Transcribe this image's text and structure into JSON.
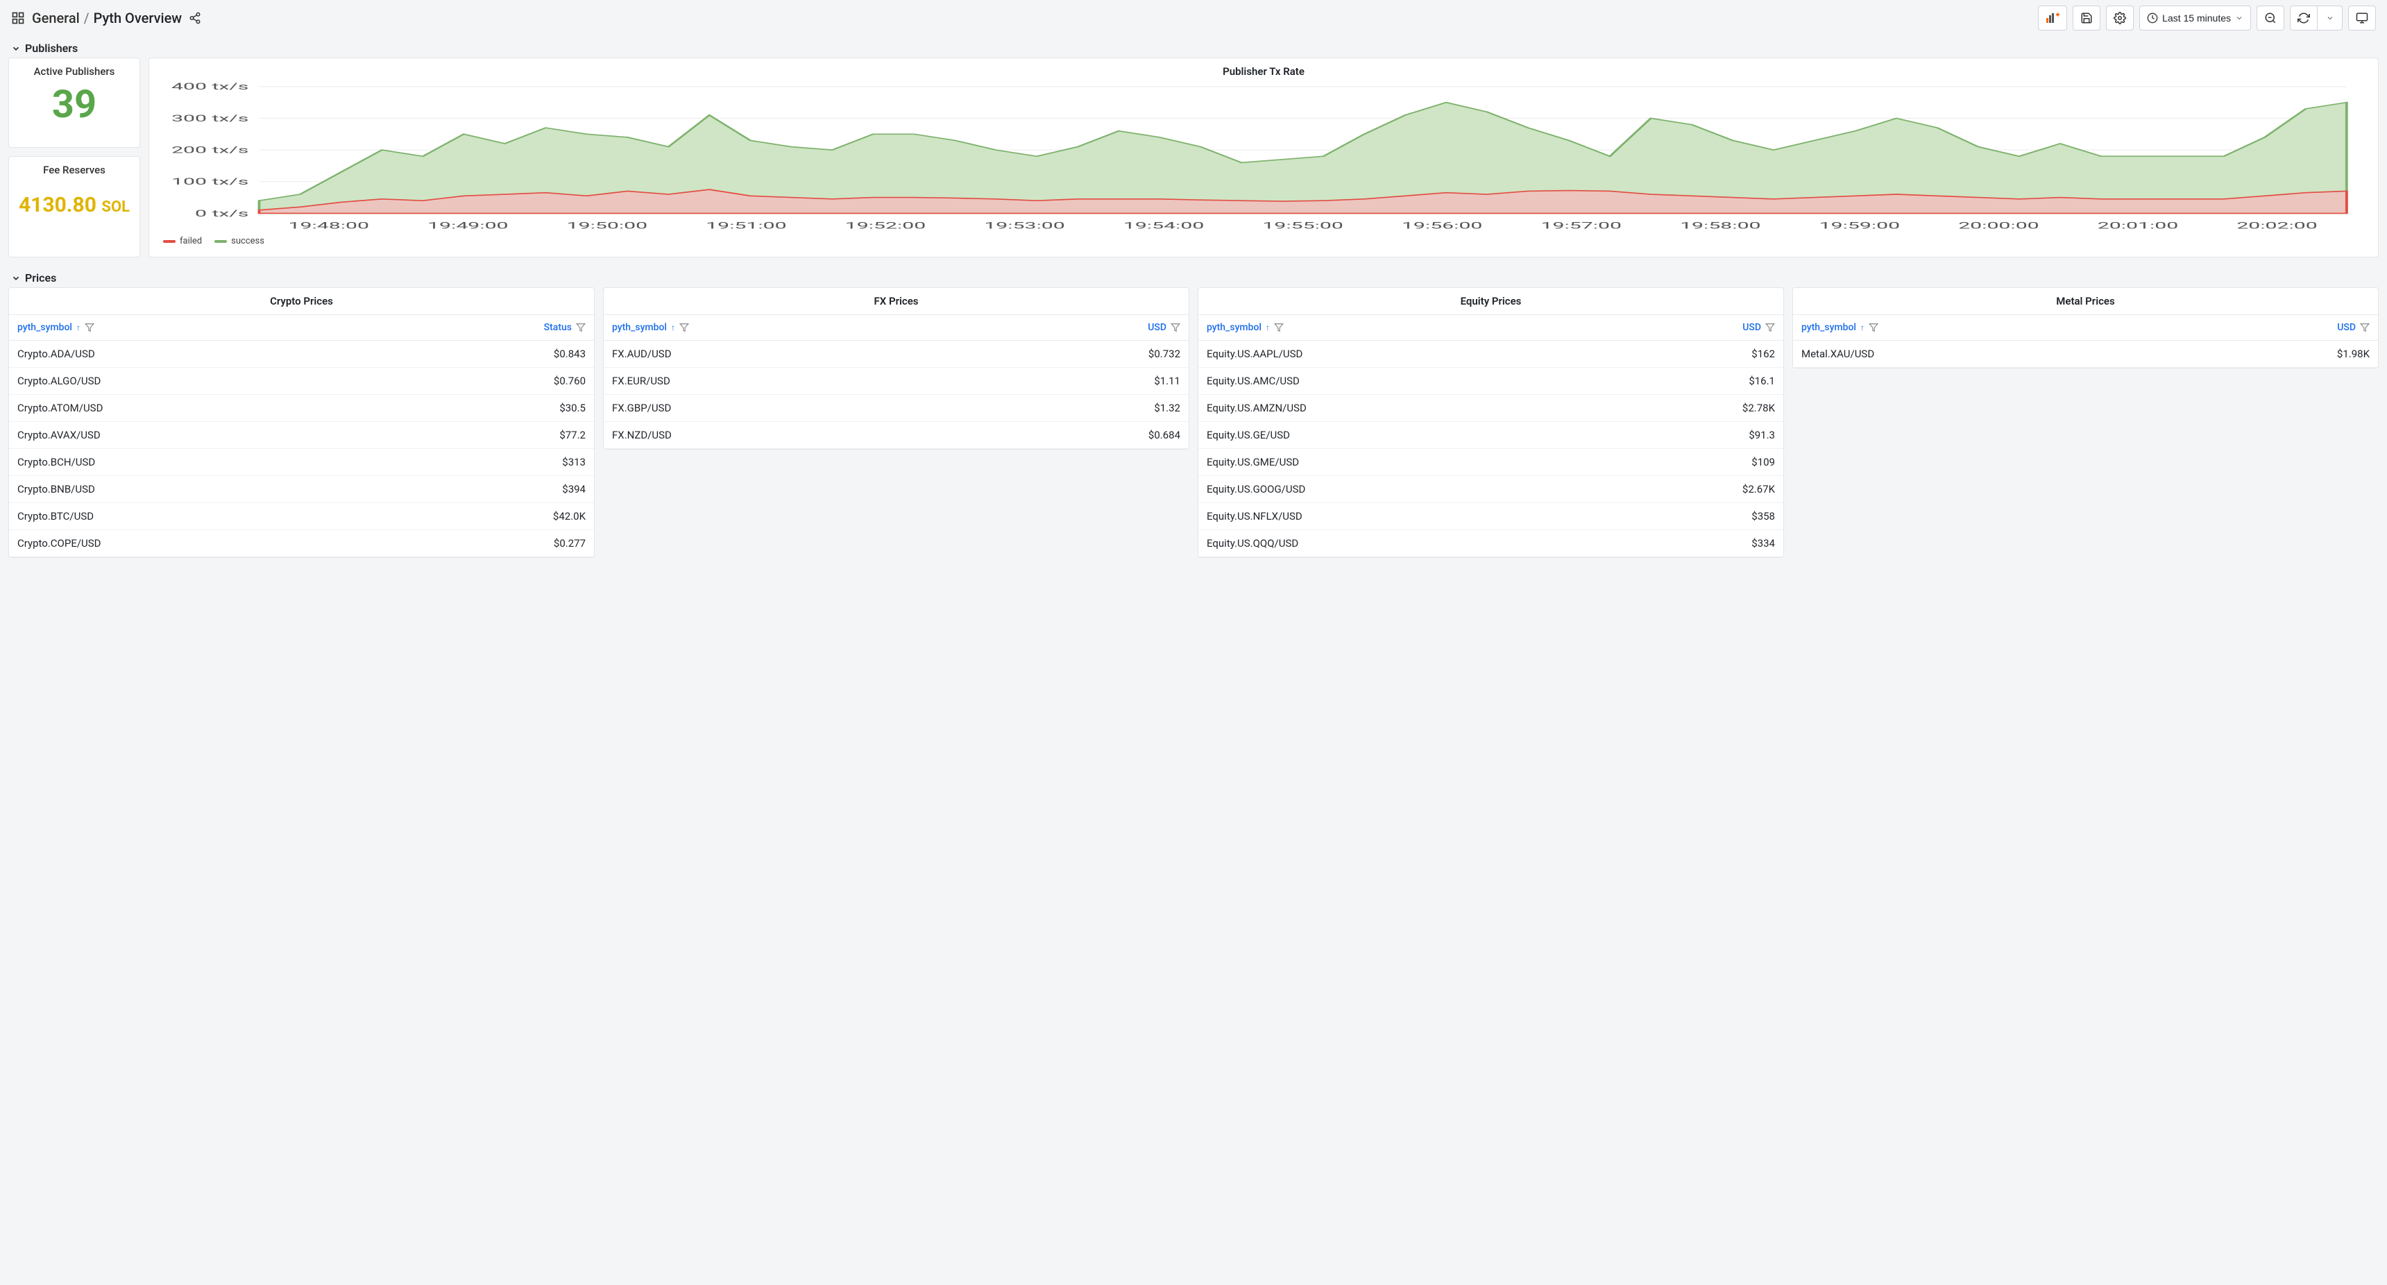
{
  "header": {
    "folder": "General",
    "title": "Pyth Overview",
    "time_range": "Last 15 minutes"
  },
  "sections": {
    "publishers": "Publishers",
    "prices": "Prices"
  },
  "stats": {
    "active_publishers": {
      "title": "Active Publishers",
      "value": "39",
      "color": "#5aa64a"
    },
    "fee_reserves": {
      "title": "Fee Reserves",
      "value": "4130.80",
      "unit": "SOL",
      "color": "#e0b400"
    }
  },
  "chart": {
    "title": "Publisher Tx Rate",
    "type": "area",
    "x_ticks": [
      "19:48:00",
      "19:49:00",
      "19:50:00",
      "19:51:00",
      "19:52:00",
      "19:53:00",
      "19:54:00",
      "19:55:00",
      "19:56:00",
      "19:57:00",
      "19:58:00",
      "19:59:00",
      "20:00:00",
      "20:01:00",
      "20:02:00"
    ],
    "y_ticks": [
      "0 tx/s",
      "100 tx/s",
      "200 tx/s",
      "300 tx/s",
      "400 tx/s"
    ],
    "ylim": [
      0,
      400
    ],
    "background_color": "#ffffff",
    "grid_color": "#ececec",
    "series": [
      {
        "name": "success",
        "stroke": "#7eb26d",
        "fill": "#c7e0bb",
        "fill_opacity": 0.85,
        "data": [
          40,
          60,
          130,
          200,
          180,
          250,
          220,
          270,
          250,
          240,
          210,
          310,
          230,
          210,
          200,
          250,
          250,
          230,
          200,
          180,
          210,
          260,
          240,
          210,
          160,
          170,
          180,
          250,
          310,
          350,
          320,
          270,
          230,
          180,
          300,
          280,
          230,
          200,
          230,
          260,
          300,
          270,
          210,
          180,
          220,
          180,
          180,
          180,
          180,
          240,
          330,
          350
        ]
      },
      {
        "name": "failed",
        "stroke": "#e24d42",
        "fill": "#f2c0bd",
        "fill_opacity": 0.85,
        "data": [
          10,
          20,
          35,
          45,
          40,
          55,
          60,
          65,
          55,
          70,
          60,
          75,
          55,
          50,
          45,
          50,
          50,
          48,
          45,
          40,
          45,
          45,
          45,
          42,
          40,
          38,
          40,
          45,
          55,
          65,
          60,
          70,
          72,
          70,
          60,
          55,
          50,
          45,
          50,
          55,
          60,
          55,
          50,
          45,
          50,
          45,
          45,
          45,
          45,
          55,
          65,
          70
        ]
      }
    ],
    "legend": [
      {
        "label": "failed",
        "color": "#e24d42"
      },
      {
        "label": "success",
        "color": "#7eb26d"
      }
    ]
  },
  "price_panels": [
    {
      "title": "Crypto Prices",
      "columns": [
        "pyth_symbol",
        "Status"
      ],
      "rows": [
        [
          "Crypto.ADA/USD",
          "$0.843"
        ],
        [
          "Crypto.ALGO/USD",
          "$0.760"
        ],
        [
          "Crypto.ATOM/USD",
          "$30.5"
        ],
        [
          "Crypto.AVAX/USD",
          "$77.2"
        ],
        [
          "Crypto.BCH/USD",
          "$313"
        ],
        [
          "Crypto.BNB/USD",
          "$394"
        ],
        [
          "Crypto.BTC/USD",
          "$42.0K"
        ],
        [
          "Crypto.COPE/USD",
          "$0.277"
        ]
      ]
    },
    {
      "title": "FX Prices",
      "columns": [
        "pyth_symbol",
        "USD"
      ],
      "rows": [
        [
          "FX.AUD/USD",
          "$0.732"
        ],
        [
          "FX.EUR/USD",
          "$1.11"
        ],
        [
          "FX.GBP/USD",
          "$1.32"
        ],
        [
          "FX.NZD/USD",
          "$0.684"
        ]
      ]
    },
    {
      "title": "Equity Prices",
      "columns": [
        "pyth_symbol",
        "USD"
      ],
      "rows": [
        [
          "Equity.US.AAPL/USD",
          "$162"
        ],
        [
          "Equity.US.AMC/USD",
          "$16.1"
        ],
        [
          "Equity.US.AMZN/USD",
          "$2.78K"
        ],
        [
          "Equity.US.GE/USD",
          "$91.3"
        ],
        [
          "Equity.US.GME/USD",
          "$109"
        ],
        [
          "Equity.US.GOOG/USD",
          "$2.67K"
        ],
        [
          "Equity.US.NFLX/USD",
          "$358"
        ],
        [
          "Equity.US.QQQ/USD",
          "$334"
        ]
      ]
    },
    {
      "title": "Metal Prices",
      "columns": [
        "pyth_symbol",
        "USD"
      ],
      "rows": [
        [
          "Metal.XAU/USD",
          "$1.98K"
        ]
      ]
    }
  ]
}
